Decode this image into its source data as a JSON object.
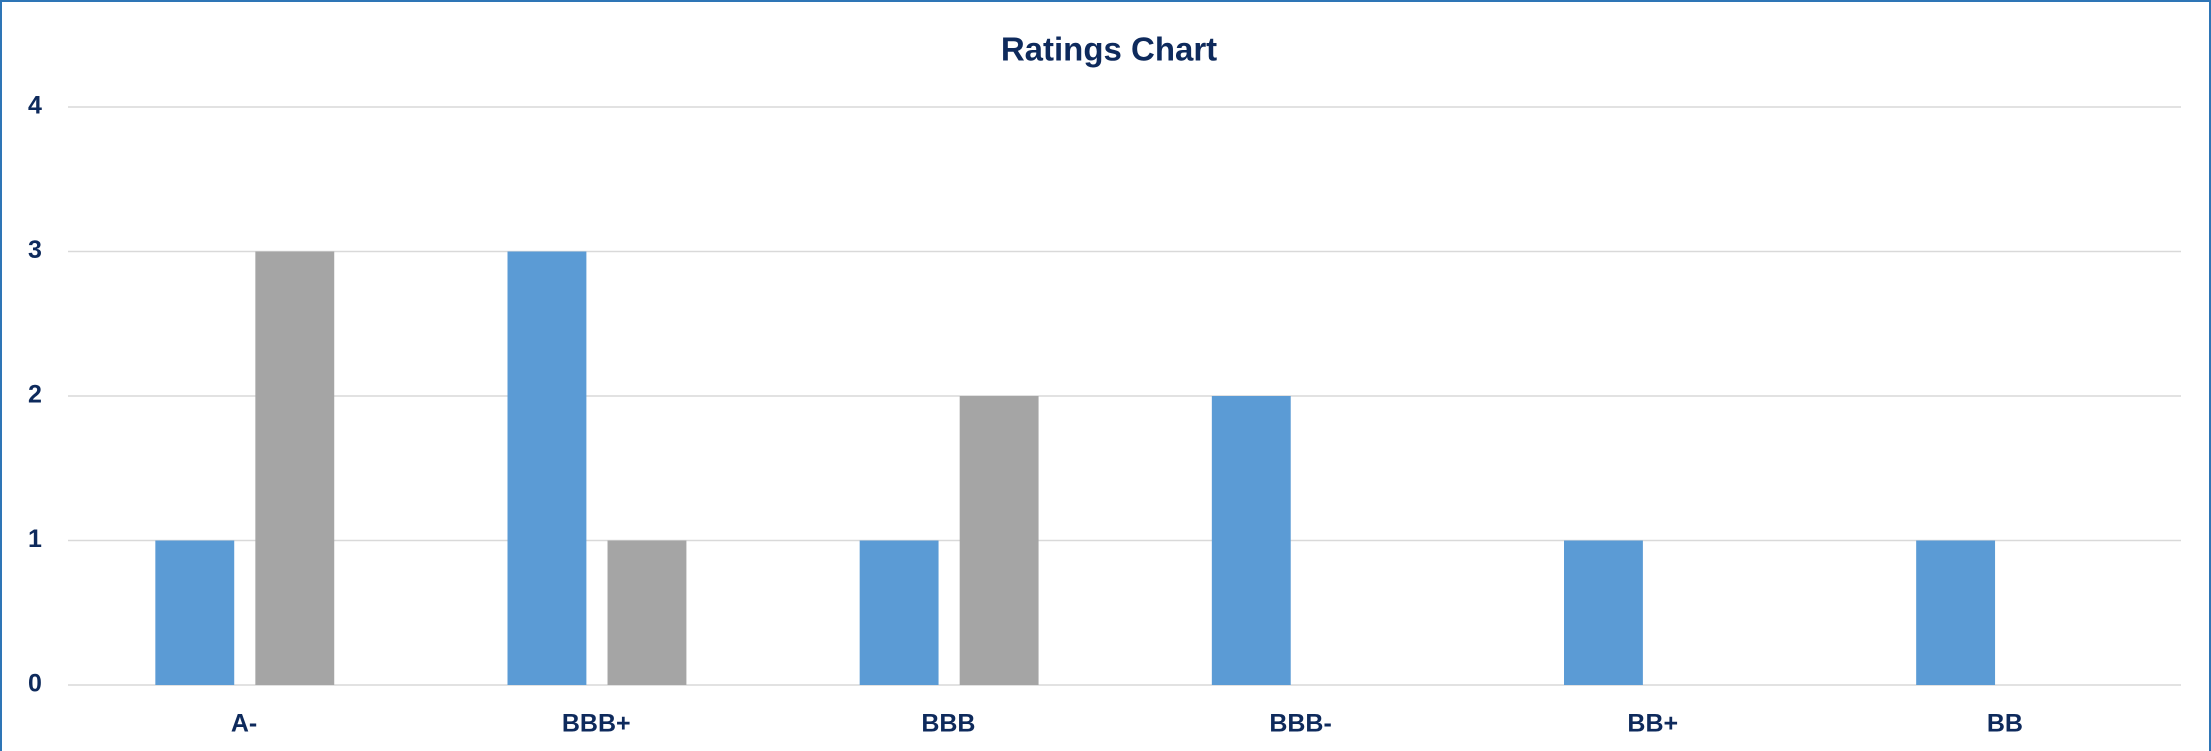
{
  "chart_data": {
    "type": "bar",
    "title": "Ratings Chart",
    "categories": [
      "A-",
      "BBB+",
      "BBB",
      "BBB-",
      "BB+",
      "BB"
    ],
    "series": [
      {
        "color": "#5b9bd5",
        "values": [
          1,
          3,
          1,
          2,
          1,
          1
        ]
      },
      {
        "color": "#a5a5a5",
        "values": [
          3,
          1,
          2,
          0,
          0,
          0
        ]
      }
    ],
    "ylim": [
      0,
      4
    ],
    "yticks": [
      0,
      1,
      2,
      3,
      4
    ],
    "grid": true
  }
}
